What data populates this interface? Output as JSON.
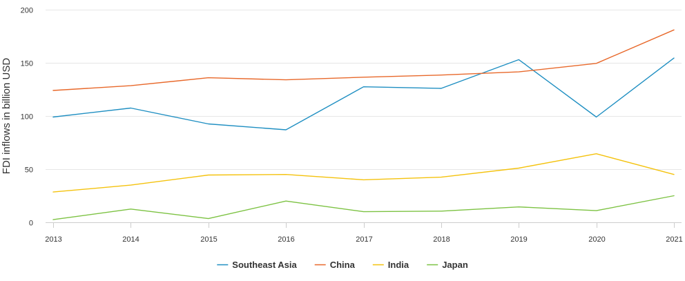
{
  "chart_data": {
    "type": "line",
    "title": "",
    "xlabel": "",
    "ylabel": "FDI inflows in billion USD",
    "categories": [
      "2013",
      "2014",
      "2015",
      "2016",
      "2017",
      "2018",
      "2019",
      "2020",
      "2021"
    ],
    "ylim": [
      0,
      200
    ],
    "yticks": [
      0,
      50,
      100,
      150,
      200
    ],
    "grid": true,
    "legend_position": "bottom",
    "series": [
      {
        "name": "Southeast Asia",
        "color": "#1f8fc2",
        "values": [
          99,
          107.5,
          92.5,
          87,
          127.5,
          126,
          153,
          99,
          154.5
        ]
      },
      {
        "name": "China",
        "color": "#e8682a",
        "values": [
          124,
          128.5,
          136,
          134,
          136.5,
          138.5,
          141.5,
          149.5,
          181
        ]
      },
      {
        "name": "India",
        "color": "#f4c20d",
        "values": [
          28.5,
          35,
          44.5,
          45,
          40,
          42.5,
          51,
          64.5,
          45
        ]
      },
      {
        "name": "Japan",
        "color": "#7cc242",
        "values": [
          2.5,
          12.5,
          3.5,
          20,
          10,
          10.5,
          14.5,
          11,
          25
        ]
      }
    ]
  }
}
